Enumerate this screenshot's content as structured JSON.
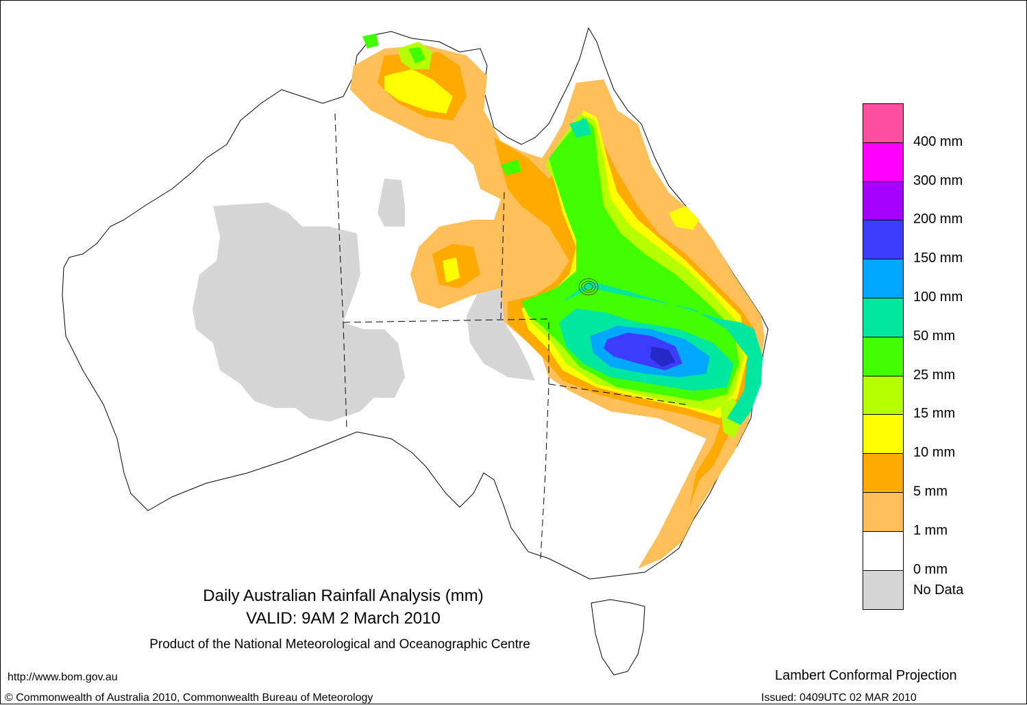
{
  "title": {
    "main": "Daily Australian Rainfall Analysis (mm)",
    "valid": "VALID: 9AM  2 March 2010",
    "product": "Product of the National Meteorological and Oceanographic Centre"
  },
  "footer": {
    "url": "http://www.bom.gov.au",
    "projection": "Lambert Conformal Projection",
    "copyright": "© Commonwealth of Australia 2010, Commonwealth Bureau of Meteorology",
    "issued": "Issued: 0409UTC 02 MAR 2010"
  },
  "legend": {
    "swatches": [
      {
        "color": "#ff4fa3"
      },
      {
        "color": "#ff00ff"
      },
      {
        "color": "#a600ff"
      },
      {
        "color": "#3c3cff"
      },
      {
        "color": "#00a8ff"
      },
      {
        "color": "#00e8a0"
      },
      {
        "color": "#42ff00"
      },
      {
        "color": "#b6ff00"
      },
      {
        "color": "#ffff00"
      },
      {
        "color": "#ffaa00"
      },
      {
        "color": "#ffc05a"
      },
      {
        "color": "#ffffff"
      },
      {
        "color": "#d6d6d6"
      }
    ],
    "labels": [
      "400 mm",
      "300 mm",
      "200 mm",
      "150 mm",
      "100 mm",
      "50 mm",
      "25 mm",
      "15 mm",
      "10 mm",
      "5 mm",
      "1 mm",
      "0 mm",
      "No Data"
    ]
  },
  "colors": {
    "no_data": "#d6d6d6",
    "r1": "#ffc05a",
    "r5": "#ffaa00",
    "r10": "#ffff00",
    "r15": "#b6ff00",
    "r25": "#42ff00",
    "r50": "#00e8a0",
    "r100": "#00a8ff",
    "r150": "#3c3cff",
    "r200": "#a600ff",
    "outline": "#000000"
  }
}
